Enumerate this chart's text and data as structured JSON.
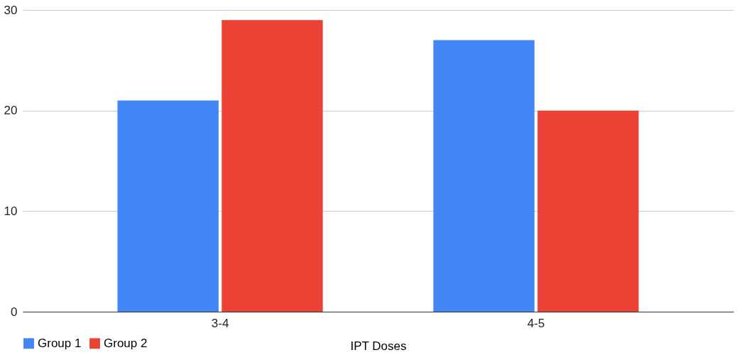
{
  "chart_data": {
    "type": "bar",
    "xlabel": "IPT Doses",
    "categories": [
      "3-4",
      "4-5"
    ],
    "series": [
      {
        "name": "Group 1",
        "color": "#4285f4",
        "values": [
          21,
          27
        ]
      },
      {
        "name": "Group 2",
        "color": "#ea4335",
        "values": [
          29,
          20
        ]
      }
    ],
    "ylim": [
      0,
      30
    ],
    "yticks": [
      0,
      10,
      20,
      30
    ],
    "grid": "y",
    "legend": "bottom"
  }
}
